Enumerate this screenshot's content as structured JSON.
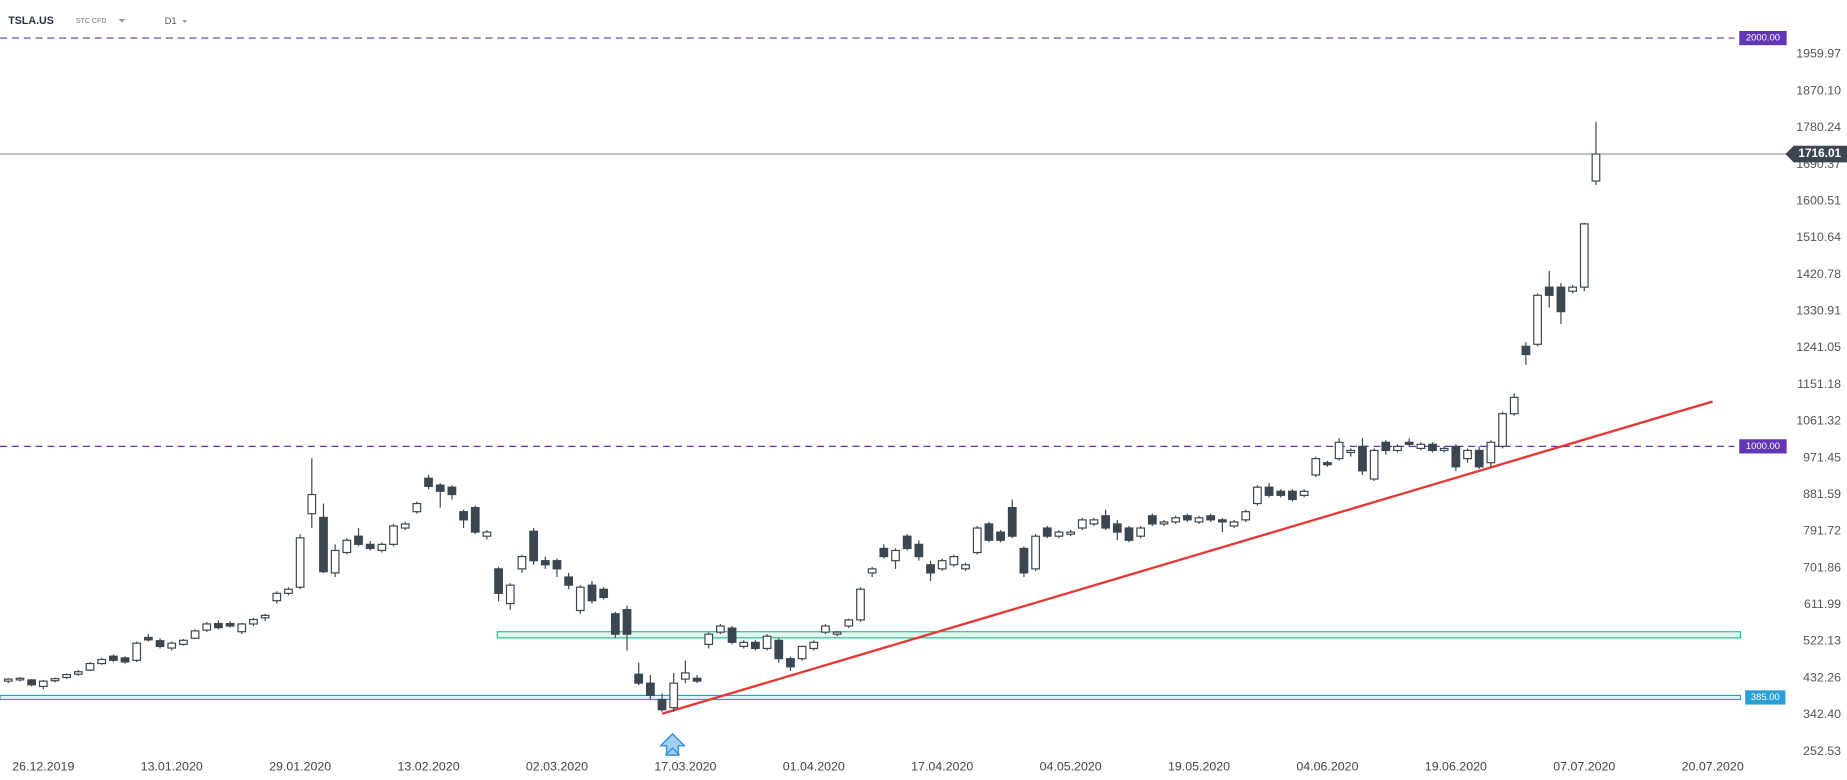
{
  "chart_data": {
    "type": "candlestick",
    "symbol": "TSLA.US",
    "instrument_type": "STC CFD",
    "interval": "D1",
    "up_color": "#ffffff",
    "down_color": "#3b4650",
    "outline_color": "#3b4650",
    "categories": [
      null,
      null,
      null,
      "26.12.2019",
      null,
      null,
      null,
      null,
      null,
      null,
      null,
      null,
      null,
      null,
      "13.01.2020",
      null,
      null,
      null,
      null,
      null,
      null,
      null,
      null,
      null,
      null,
      "29.01.2020",
      null,
      null,
      null,
      null,
      null,
      null,
      null,
      null,
      null,
      null,
      "13.02.2020",
      null,
      null,
      null,
      null,
      null,
      null,
      null,
      null,
      null,
      null,
      "02.03.2020",
      null,
      null,
      null,
      null,
      null,
      null,
      null,
      null,
      null,
      null,
      "17.03.2020",
      null,
      null,
      null,
      null,
      null,
      null,
      null,
      null,
      null,
      null,
      "01.04.2020",
      null,
      null,
      null,
      null,
      null,
      null,
      null,
      null,
      null,
      null,
      "17.04.2020",
      null,
      null,
      null,
      null,
      null,
      null,
      null,
      null,
      null,
      null,
      "04.05.2020",
      null,
      null,
      null,
      null,
      null,
      null,
      null,
      null,
      null,
      null,
      "19.05.2020",
      null,
      null,
      null,
      null,
      null,
      null,
      null,
      null,
      null,
      null,
      "04.06.2020",
      null,
      null,
      null,
      null,
      null,
      null,
      null,
      null,
      null,
      null,
      "19.06.2020",
      null,
      null,
      null,
      null,
      null,
      null,
      null,
      null,
      null,
      null,
      "07.07.2020",
      null,
      null,
      null,
      null,
      null,
      null,
      null,
      null,
      null,
      null,
      "20.07.2020"
    ],
    "open": [
      425,
      428,
      428,
      412,
      426,
      434,
      442,
      452,
      468,
      486,
      482,
      476,
      532,
      524,
      506,
      515,
      530,
      550,
      566,
      566,
      546,
      565,
      580,
      622,
      640,
      655,
      835,
      826,
      690,
      740,
      780,
      760,
      745,
      760,
      800,
      840,
      922,
      905,
      900,
      840,
      850,
      780,
      700,
      615,
      700,
      792,
      720,
      720,
      680,
      598,
      660,
      650,
      590,
      600,
      442,
      420,
      380,
      360,
      430,
      432,
      515,
      545,
      555,
      510,
      520,
      505,
      525,
      480,
      480,
      505,
      545,
      540,
      560,
      575,
      690,
      750,
      720,
      780,
      760,
      710,
      700,
      710,
      700,
      740,
      810,
      790,
      850,
      750,
      700,
      800,
      780,
      785,
      800,
      810,
      830,
      810,
      800,
      780,
      830,
      810,
      815,
      830,
      815,
      830,
      820,
      805,
      820,
      860,
      900,
      890,
      890,
      880,
      930,
      960,
      970,
      985,
      1000,
      920,
      1010,
      990,
      1010,
      995,
      1005,
      990,
      1000,
      970,
      990,
      960,
      1000,
      1080,
      1245,
      1250,
      1390,
      1390,
      1380,
      1390,
      1650,
      null,
      null,
      null,
      null,
      null,
      null,
      null,
      null,
      null,
      null
    ],
    "high": [
      432,
      435,
      430,
      428,
      434,
      444,
      452,
      472,
      482,
      490,
      486,
      522,
      540,
      530,
      522,
      528,
      552,
      570,
      574,
      572,
      568,
      580,
      590,
      645,
      655,
      785,
      971,
      860,
      760,
      775,
      800,
      768,
      765,
      810,
      815,
      865,
      930,
      910,
      905,
      845,
      855,
      795,
      705,
      665,
      735,
      800,
      730,
      725,
      690,
      660,
      670,
      655,
      595,
      610,
      470,
      440,
      395,
      445,
      475,
      440,
      545,
      565,
      560,
      525,
      525,
      540,
      530,
      485,
      512,
      525,
      565,
      548,
      578,
      655,
      705,
      760,
      750,
      785,
      770,
      720,
      725,
      735,
      715,
      805,
      815,
      795,
      870,
      755,
      785,
      805,
      795,
      795,
      825,
      825,
      845,
      820,
      805,
      805,
      835,
      820,
      830,
      835,
      830,
      835,
      825,
      820,
      845,
      905,
      910,
      895,
      895,
      895,
      975,
      965,
      1020,
      995,
      1020,
      995,
      1015,
      1005,
      1020,
      1010,
      1010,
      1000,
      1005,
      995,
      1000,
      1015,
      1085,
      1130,
      1255,
      1375,
      1430,
      1400,
      1395,
      1548,
      1795,
      null,
      null,
      null,
      null,
      null,
      null,
      null,
      null,
      null,
      null
    ],
    "low": [
      420,
      424,
      412,
      405,
      422,
      430,
      438,
      450,
      465,
      472,
      468,
      472,
      522,
      505,
      500,
      512,
      528,
      545,
      552,
      556,
      540,
      560,
      572,
      615,
      635,
      650,
      800,
      690,
      680,
      735,
      755,
      745,
      740,
      755,
      795,
      835,
      895,
      850,
      870,
      800,
      785,
      772,
      620,
      600,
      690,
      710,
      700,
      680,
      650,
      590,
      615,
      625,
      530,
      500,
      415,
      380,
      350,
      350,
      420,
      420,
      505,
      540,
      515,
      505,
      500,
      500,
      470,
      450,
      475,
      500,
      540,
      535,
      555,
      570,
      680,
      725,
      700,
      745,
      720,
      670,
      695,
      705,
      695,
      735,
      765,
      765,
      775,
      680,
      695,
      775,
      775,
      780,
      795,
      805,
      795,
      770,
      765,
      775,
      805,
      805,
      810,
      815,
      810,
      815,
      790,
      800,
      815,
      855,
      875,
      875,
      865,
      875,
      925,
      950,
      965,
      975,
      930,
      915,
      980,
      985,
      1000,
      990,
      985,
      985,
      940,
      960,
      945,
      950,
      995,
      1075,
      1200,
      1245,
      1340,
      1300,
      1375,
      1380,
      1640,
      null,
      null,
      null,
      null,
      null,
      null,
      null,
      null,
      null,
      null
    ],
    "close": [
      430,
      432,
      416,
      425,
      431,
      441,
      448,
      468,
      478,
      476,
      472,
      518,
      526,
      510,
      518,
      525,
      548,
      565,
      556,
      560,
      565,
      576,
      586,
      640,
      650,
      776,
      882,
      693,
      745,
      770,
      760,
      750,
      760,
      805,
      810,
      860,
      902,
      890,
      882,
      820,
      790,
      790,
      640,
      660,
      730,
      720,
      710,
      700,
      660,
      655,
      622,
      630,
      540,
      540,
      420,
      390,
      355,
      420,
      445,
      425,
      540,
      560,
      520,
      520,
      505,
      535,
      480,
      460,
      510,
      520,
      560,
      545,
      575,
      650,
      700,
      730,
      745,
      750,
      730,
      690,
      720,
      730,
      710,
      800,
      770,
      770,
      780,
      690,
      780,
      780,
      790,
      790,
      820,
      820,
      800,
      790,
      770,
      800,
      810,
      815,
      825,
      820,
      825,
      820,
      815,
      815,
      840,
      900,
      880,
      880,
      870,
      890,
      970,
      955,
      1010,
      990,
      940,
      990,
      990,
      1000,
      1005,
      1005,
      990,
      995,
      950,
      990,
      950,
      1010,
      1080,
      1120,
      1225,
      1370,
      1370,
      1330,
      1390,
      1545,
      1716,
      null,
      null,
      null,
      null,
      null,
      null,
      null,
      null,
      null,
      null
    ],
    "ylim": [
      223.4,
      2093.3
    ],
    "yticks": [
      1959.97,
      {
        "value": 1870.1,
        "label": "1870.10"
      },
      1780.24,
      1690.37,
      1600.51,
      1510.64,
      1420.78,
      1330.91,
      1241.05,
      1151.18,
      1061.32,
      971.45,
      881.59,
      791.72,
      701.86,
      611.99,
      522.13,
      432.26,
      {
        "value": 342.4,
        "label": "342.40"
      },
      252.53
    ],
    "levels": [
      {
        "value": 2000,
        "label": "2000.00",
        "color": "#6236b5"
      },
      {
        "value": 1000,
        "label": "1000.00",
        "color": "#6236b5"
      }
    ],
    "last_price": {
      "value": 1716.01,
      "color": "#3b4650"
    },
    "zones": [
      {
        "range": [
          531,
          546
        ],
        "color": "#2bbf8a"
      },
      {
        "range": [
          380,
          390
        ],
        "color": "#2a9fd6",
        "label": {
          "value": 385,
          "label": "385.00"
        }
      }
    ],
    "trend_line": {
      "color": "#e53935",
      "points": [
        [
          56,
          345
        ],
        [
          146,
          1110
        ]
      ]
    }
  }
}
